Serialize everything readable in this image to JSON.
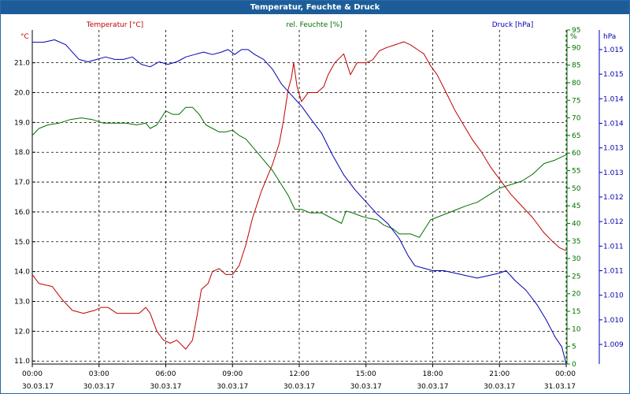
{
  "window": {
    "title": "Temperatur, Feuchte & Druck"
  },
  "colors": {
    "temp": "#c00000",
    "humidity": "#007000",
    "pressure": "#0000b0",
    "grid": "#000000",
    "titlebar": "#1c5d99"
  },
  "chart_data": {
    "type": "line",
    "title": "Temperatur, Feuchte & Druck",
    "grid": true,
    "x": {
      "range_hours": [
        0,
        24
      ],
      "ticks": [
        {
          "h": 0,
          "time": "00:00",
          "date": "30.03.17"
        },
        {
          "h": 3,
          "time": "03:00",
          "date": "30.03.17"
        },
        {
          "h": 6,
          "time": "06:00",
          "date": "30.03.17"
        },
        {
          "h": 9,
          "time": "09:00",
          "date": "30.03.17"
        },
        {
          "h": 12,
          "time": "12:00",
          "date": "30.03.17"
        },
        {
          "h": 15,
          "time": "15:00",
          "date": "30.03.17"
        },
        {
          "h": 18,
          "time": "18:00",
          "date": "30.03.17"
        },
        {
          "h": 21,
          "time": "21:00",
          "date": "30.03.17"
        },
        {
          "h": 24,
          "time": "00:00",
          "date": "31.03.17"
        }
      ]
    },
    "axes": {
      "temp": {
        "label": "Temperatur [°C]",
        "unit": "°C",
        "min": 10.9,
        "max": 22.1,
        "ticks": [
          {
            "v": 11,
            "t": "11.0"
          },
          {
            "v": 12,
            "t": "12.0"
          },
          {
            "v": 13,
            "t": "13.0"
          },
          {
            "v": 14,
            "t": "14.0"
          },
          {
            "v": 15,
            "t": "15.0"
          },
          {
            "v": 16,
            "t": "16.0"
          },
          {
            "v": 17,
            "t": "17.0"
          },
          {
            "v": 18,
            "t": "18.0"
          },
          {
            "v": 19,
            "t": "19.0"
          },
          {
            "v": 20,
            "t": "20.0"
          },
          {
            "v": 21,
            "t": "21.0"
          }
        ]
      },
      "humidity": {
        "label": "rel. Feuchte [%]",
        "unit": "%",
        "min": 0,
        "max": 95,
        "ticks": [
          {
            "v": 0,
            "t": "0"
          },
          {
            "v": 5,
            "t": "5"
          },
          {
            "v": 10,
            "t": "10"
          },
          {
            "v": 15,
            "t": "15"
          },
          {
            "v": 20,
            "t": "20"
          },
          {
            "v": 25,
            "t": "25"
          },
          {
            "v": 30,
            "t": "30"
          },
          {
            "v": 35,
            "t": "35"
          },
          {
            "v": 40,
            "t": "40"
          },
          {
            "v": 45,
            "t": "45"
          },
          {
            "v": 50,
            "t": "50"
          },
          {
            "v": 55,
            "t": "55"
          },
          {
            "v": 60,
            "t": "60"
          },
          {
            "v": 65,
            "t": "65"
          },
          {
            "v": 70,
            "t": "70"
          },
          {
            "v": 75,
            "t": "75"
          },
          {
            "v": 80,
            "t": "80"
          },
          {
            "v": 85,
            "t": "85"
          },
          {
            "v": 90,
            "t": "90"
          },
          {
            "v": 95,
            "t": "95"
          }
        ]
      },
      "pressure": {
        "label": "Druck [hPa]",
        "unit": "hPa",
        "min": 1008.6,
        "max": 1015.4,
        "ticks": [
          {
            "v": 1009.0,
            "t": "1.009"
          },
          {
            "v": 1009.5,
            "t": "1.010"
          },
          {
            "v": 1010.0,
            "t": "1.010"
          },
          {
            "v": 1010.5,
            "t": "1.011"
          },
          {
            "v": 1011.0,
            "t": "1.011"
          },
          {
            "v": 1011.5,
            "t": "1.012"
          },
          {
            "v": 1012.0,
            "t": "1.012"
          },
          {
            "v": 1012.5,
            "t": "1.013"
          },
          {
            "v": 1013.0,
            "t": "1.013"
          },
          {
            "v": 1013.5,
            "t": "1.014"
          },
          {
            "v": 1014.0,
            "t": "1.014"
          },
          {
            "v": 1014.5,
            "t": "1.015"
          },
          {
            "v": 1015.0,
            "t": "1.015"
          }
        ]
      }
    },
    "series": [
      {
        "name": "Temperatur [°C]",
        "axis": "temp",
        "color": "#c00000",
        "points": [
          [
            0,
            13.9
          ],
          [
            0.3,
            13.6
          ],
          [
            0.9,
            13.5
          ],
          [
            1.3,
            13.1
          ],
          [
            1.8,
            12.7
          ],
          [
            2.3,
            12.6
          ],
          [
            2.8,
            12.7
          ],
          [
            3.1,
            12.8
          ],
          [
            3.4,
            12.8
          ],
          [
            3.8,
            12.6
          ],
          [
            4.3,
            12.6
          ],
          [
            4.8,
            12.6
          ],
          [
            5.1,
            12.8
          ],
          [
            5.3,
            12.6
          ],
          [
            5.6,
            12.0
          ],
          [
            5.9,
            11.7
          ],
          [
            6.2,
            11.6
          ],
          [
            6.5,
            11.7
          ],
          [
            6.9,
            11.4
          ],
          [
            7.2,
            11.7
          ],
          [
            7.4,
            12.5
          ],
          [
            7.6,
            13.4
          ],
          [
            7.9,
            13.6
          ],
          [
            8.1,
            14.0
          ],
          [
            8.4,
            14.1
          ],
          [
            8.7,
            13.9
          ],
          [
            9.0,
            13.9
          ],
          [
            9.3,
            14.2
          ],
          [
            9.6,
            14.9
          ],
          [
            9.9,
            15.8
          ],
          [
            10.3,
            16.7
          ],
          [
            10.8,
            17.6
          ],
          [
            11.1,
            18.3
          ],
          [
            11.3,
            19.1
          ],
          [
            11.5,
            20.1
          ],
          [
            11.65,
            20.5
          ],
          [
            11.75,
            21.0
          ],
          [
            11.9,
            20.2
          ],
          [
            12.1,
            19.7
          ],
          [
            12.4,
            20.0
          ],
          [
            12.8,
            20.0
          ],
          [
            13.1,
            20.2
          ],
          [
            13.3,
            20.6
          ],
          [
            13.6,
            21.0
          ],
          [
            14.0,
            21.3
          ],
          [
            14.3,
            20.6
          ],
          [
            14.6,
            21.0
          ],
          [
            15.0,
            21.0
          ],
          [
            15.3,
            21.1
          ],
          [
            15.6,
            21.4
          ],
          [
            15.9,
            21.5
          ],
          [
            16.3,
            21.6
          ],
          [
            16.7,
            21.7
          ],
          [
            17.0,
            21.6
          ],
          [
            17.4,
            21.4
          ],
          [
            17.6,
            21.3
          ],
          [
            17.9,
            20.9
          ],
          [
            18.2,
            20.6
          ],
          [
            18.6,
            20.0
          ],
          [
            19.0,
            19.4
          ],
          [
            19.4,
            18.9
          ],
          [
            19.8,
            18.4
          ],
          [
            20.2,
            18.0
          ],
          [
            20.6,
            17.5
          ],
          [
            21.0,
            17.1
          ],
          [
            21.5,
            16.6
          ],
          [
            22.0,
            16.2
          ],
          [
            22.5,
            15.8
          ],
          [
            23.0,
            15.3
          ],
          [
            23.4,
            15.0
          ],
          [
            23.7,
            14.8
          ],
          [
            24,
            14.7
          ]
        ]
      },
      {
        "name": "rel. Feuchte [%]",
        "axis": "humidity",
        "color": "#007000",
        "points": [
          [
            0,
            65
          ],
          [
            0.3,
            67
          ],
          [
            0.7,
            68
          ],
          [
            1.2,
            68.5
          ],
          [
            1.7,
            69.5
          ],
          [
            2.2,
            70
          ],
          [
            2.7,
            69.5
          ],
          [
            3.2,
            68.5
          ],
          [
            3.7,
            68.5
          ],
          [
            4.2,
            68.5
          ],
          [
            4.7,
            68
          ],
          [
            5.1,
            68.5
          ],
          [
            5.3,
            67
          ],
          [
            5.6,
            68
          ],
          [
            5.8,
            70
          ],
          [
            6.0,
            72
          ],
          [
            6.3,
            71
          ],
          [
            6.6,
            71
          ],
          [
            6.9,
            73
          ],
          [
            7.2,
            73
          ],
          [
            7.5,
            71
          ],
          [
            7.8,
            68
          ],
          [
            8.1,
            67
          ],
          [
            8.4,
            66
          ],
          [
            8.7,
            66
          ],
          [
            9.0,
            66.5
          ],
          [
            9.3,
            65
          ],
          [
            9.6,
            64
          ],
          [
            10.0,
            61
          ],
          [
            10.4,
            58
          ],
          [
            10.8,
            55
          ],
          [
            11.2,
            51
          ],
          [
            11.5,
            48
          ],
          [
            11.8,
            44
          ],
          [
            12.1,
            44
          ],
          [
            12.5,
            43
          ],
          [
            13.0,
            43
          ],
          [
            13.3,
            42
          ],
          [
            13.6,
            41
          ],
          [
            13.9,
            40
          ],
          [
            14.1,
            43.5
          ],
          [
            14.4,
            43
          ],
          [
            14.8,
            42
          ],
          [
            15.1,
            41.5
          ],
          [
            15.5,
            41
          ],
          [
            15.8,
            39.5
          ],
          [
            16.2,
            38.5
          ],
          [
            16.5,
            37
          ],
          [
            17.0,
            37
          ],
          [
            17.4,
            36
          ],
          [
            17.6,
            38
          ],
          [
            17.9,
            41
          ],
          [
            18.3,
            42
          ],
          [
            18.7,
            43
          ],
          [
            19.1,
            44
          ],
          [
            19.5,
            45
          ],
          [
            20.0,
            46
          ],
          [
            20.5,
            48
          ],
          [
            21.0,
            50
          ],
          [
            21.5,
            51
          ],
          [
            22.0,
            52
          ],
          [
            22.5,
            54
          ],
          [
            23.0,
            57
          ],
          [
            23.5,
            58
          ],
          [
            24,
            59.5
          ]
        ]
      },
      {
        "name": "Druck [hPa]",
        "axis": "pressure",
        "color": "#0000b0",
        "points": [
          [
            0,
            1015.15
          ],
          [
            0.5,
            1015.15
          ],
          [
            1.0,
            1015.2
          ],
          [
            1.5,
            1015.1
          ],
          [
            1.8,
            1014.95
          ],
          [
            2.1,
            1014.8
          ],
          [
            2.5,
            1014.75
          ],
          [
            2.9,
            1014.8
          ],
          [
            3.3,
            1014.85
          ],
          [
            3.7,
            1014.8
          ],
          [
            4.1,
            1014.8
          ],
          [
            4.5,
            1014.85
          ],
          [
            4.9,
            1014.7
          ],
          [
            5.3,
            1014.65
          ],
          [
            5.7,
            1014.75
          ],
          [
            6.1,
            1014.7
          ],
          [
            6.5,
            1014.75
          ],
          [
            6.9,
            1014.85
          ],
          [
            7.3,
            1014.9
          ],
          [
            7.7,
            1014.95
          ],
          [
            8.1,
            1014.9
          ],
          [
            8.5,
            1014.95
          ],
          [
            8.8,
            1015.0
          ],
          [
            9.1,
            1014.9
          ],
          [
            9.4,
            1015.0
          ],
          [
            9.7,
            1015.0
          ],
          [
            10.0,
            1014.9
          ],
          [
            10.4,
            1014.8
          ],
          [
            10.8,
            1014.6
          ],
          [
            11.2,
            1014.3
          ],
          [
            11.7,
            1014.05
          ],
          [
            12.1,
            1013.85
          ],
          [
            12.5,
            1013.6
          ],
          [
            13.0,
            1013.3
          ],
          [
            13.5,
            1012.85
          ],
          [
            14.0,
            1012.45
          ],
          [
            14.5,
            1012.15
          ],
          [
            15.0,
            1011.9
          ],
          [
            15.5,
            1011.65
          ],
          [
            16.0,
            1011.45
          ],
          [
            16.5,
            1011.15
          ],
          [
            16.9,
            1010.8
          ],
          [
            17.2,
            1010.6
          ],
          [
            17.6,
            1010.55
          ],
          [
            18.0,
            1010.5
          ],
          [
            18.5,
            1010.5
          ],
          [
            19.0,
            1010.45
          ],
          [
            19.5,
            1010.4
          ],
          [
            20.0,
            1010.35
          ],
          [
            20.5,
            1010.4
          ],
          [
            21.0,
            1010.45
          ],
          [
            21.3,
            1010.5
          ],
          [
            21.7,
            1010.3
          ],
          [
            22.2,
            1010.1
          ],
          [
            22.7,
            1009.8
          ],
          [
            23.1,
            1009.5
          ],
          [
            23.5,
            1009.15
          ],
          [
            23.8,
            1008.95
          ],
          [
            24,
            1008.6
          ]
        ]
      }
    ]
  }
}
